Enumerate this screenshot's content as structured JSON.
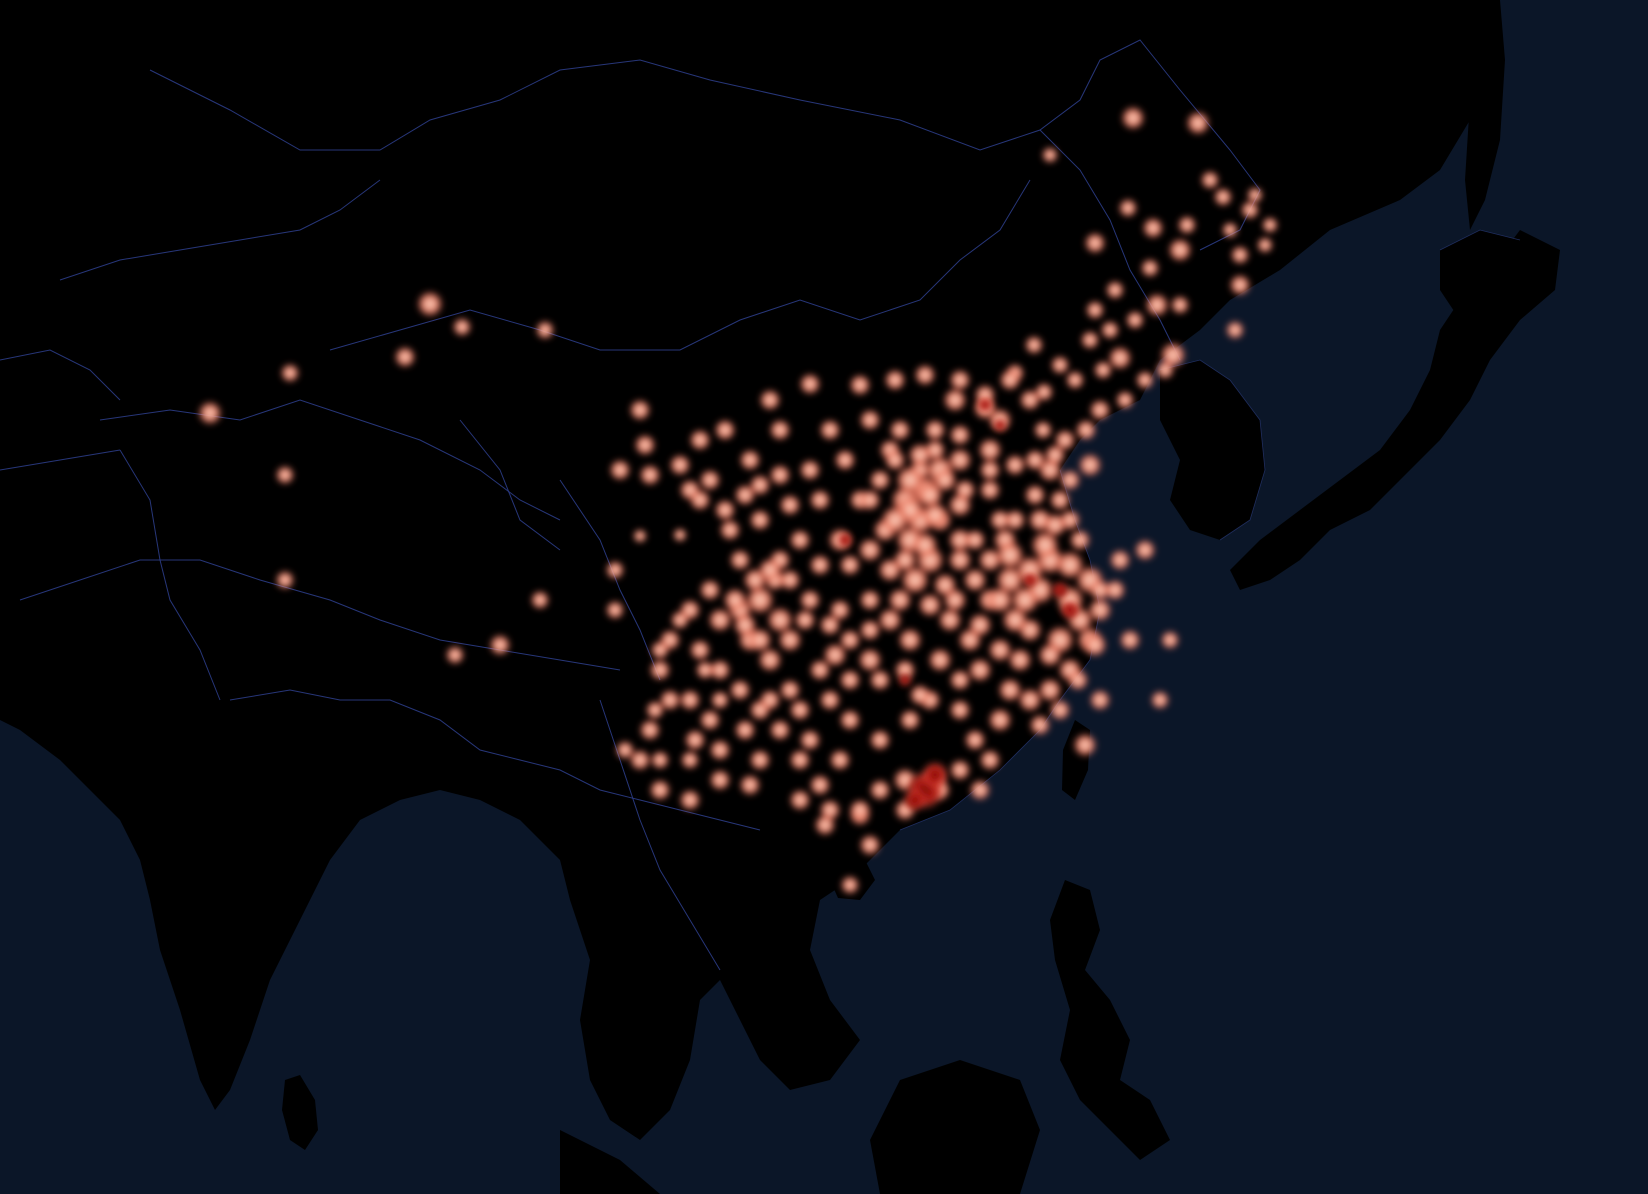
{
  "map": {
    "theme": "dark",
    "colors": {
      "ocean": "#0b1628",
      "land": "#000000",
      "border": "#2b3c86",
      "heat_low": "#f6c7b0",
      "heat_mid": "#e8664f",
      "heat_high": "#8b0000"
    },
    "heatmap": {
      "intensity_scale": "low-to-high",
      "hotspot_note": ""
    }
  }
}
